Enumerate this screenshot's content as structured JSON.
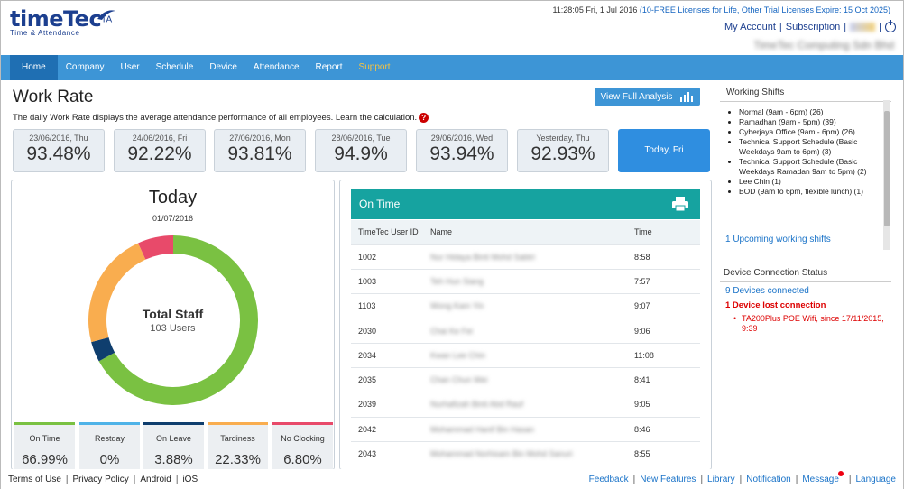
{
  "header": {
    "logo_text": "timeTec",
    "logo_sup": "TA",
    "logo_tagline": "Time & Attendance",
    "datetime": "11:28:05 Fri, 1 Jul 2016",
    "license_info": "(10-FREE Licenses for Life, Other Trial Licenses Expire: 15 Oct 2025)",
    "my_account": "My Account",
    "subscription": "Subscription",
    "company_name": "TimeTec Computing Sdn Bhd"
  },
  "nav": [
    "Home",
    "Company",
    "User",
    "Schedule",
    "Device",
    "Attendance",
    "Report",
    "Support"
  ],
  "work_rate": {
    "title": "Work Rate",
    "description": "The daily Work Rate displays the average attendance performance of all employees. Learn the calculation.",
    "analysis_button": "View Full Analysis",
    "days": [
      {
        "date": "23/06/2016, Thu",
        "value": "93.48%"
      },
      {
        "date": "24/06/2016, Fri",
        "value": "92.22%"
      },
      {
        "date": "27/06/2016, Mon",
        "value": "93.81%"
      },
      {
        "date": "28/06/2016, Tue",
        "value": "94.9%"
      },
      {
        "date": "29/06/2016, Wed",
        "value": "93.94%"
      },
      {
        "date": "Yesterday, Thu",
        "value": "92.93%"
      },
      {
        "date": "Today, Fri",
        "value": ""
      }
    ]
  },
  "today": {
    "title": "Today",
    "date": "01/07/2016",
    "total_label": "Total Staff",
    "total_users": "103 Users",
    "stats": [
      {
        "label": "On Time",
        "percent": "66.99%",
        "color": "#7ac142"
      },
      {
        "label": "Restday",
        "percent": "0%",
        "color": "#4fb3e8"
      },
      {
        "label": "On Leave",
        "percent": "3.88%",
        "color": "#0f3e6e"
      },
      {
        "label": "Tardiness",
        "percent": "22.33%",
        "color": "#f9ad4f"
      },
      {
        "label": "No Clocking",
        "percent": "6.80%",
        "color": "#e84a6a"
      }
    ]
  },
  "chart_data": {
    "type": "pie",
    "categories": [
      "On Time",
      "Restday",
      "On Leave",
      "Tardiness",
      "No Clocking"
    ],
    "values": [
      66.99,
      0,
      3.88,
      22.33,
      6.8
    ],
    "colors": [
      "#7ac142",
      "#4fb3e8",
      "#0f3e6e",
      "#f9ad4f",
      "#e84a6a"
    ],
    "title": "Today"
  },
  "ontime": {
    "title": "On Time",
    "columns": [
      "TimeTec User ID",
      "Name",
      "Time"
    ],
    "rows": [
      {
        "id": "1002",
        "name": "Nur Hidaya Binti Mohd Sabtri",
        "time": "8:58"
      },
      {
        "id": "1003",
        "name": "Teh Hun Siang",
        "time": "7:57"
      },
      {
        "id": "1103",
        "name": "Wong Kam Yin",
        "time": "9:07"
      },
      {
        "id": "2030",
        "name": "Chai Ke Fei",
        "time": "9:06"
      },
      {
        "id": "2034",
        "name": "Kwan Lee Chin",
        "time": "11:08"
      },
      {
        "id": "2035",
        "name": "Chan Chun Wei",
        "time": "8:41"
      },
      {
        "id": "2039",
        "name": "Nurhafizah Binti Abd Rauf",
        "time": "9:05"
      },
      {
        "id": "2042",
        "name": "Mohammad Hanif Bin Hasan",
        "time": "8:46"
      },
      {
        "id": "2043",
        "name": "Mohammad Norhisam Bin Mohd Sanuri",
        "time": "8:55"
      }
    ]
  },
  "shifts": {
    "title": "Working Shifts",
    "items": [
      "Normal (9am - 6pm) (26)",
      "Ramadhan (9am - 5pm) (39)",
      "Cyberjaya Office (9am - 6pm) (26)",
      "Technical Support Schedule (Basic Weekdays 9am to 6pm) (3)",
      "Technical Support Schedule (Basic Weekdays Ramadan 9am to 5pm) (2)",
      "Lee Chin (1)",
      "BOD (9am to 6pm, flexible lunch) (1)"
    ],
    "upcoming": "1 Upcoming working shifts"
  },
  "devices": {
    "title": "Device Connection Status",
    "connected": "9 Devices connected",
    "lost": "1 Device lost connection",
    "lost_item": "TA200Plus POE Wifi, since 17/11/2015, 9:39"
  },
  "footer": {
    "left": [
      "Terms of Use",
      "Privacy Policy",
      "Android",
      "iOS"
    ],
    "right": [
      "Feedback",
      "New Features",
      "Library",
      "Notification",
      "Message",
      "Language"
    ]
  }
}
